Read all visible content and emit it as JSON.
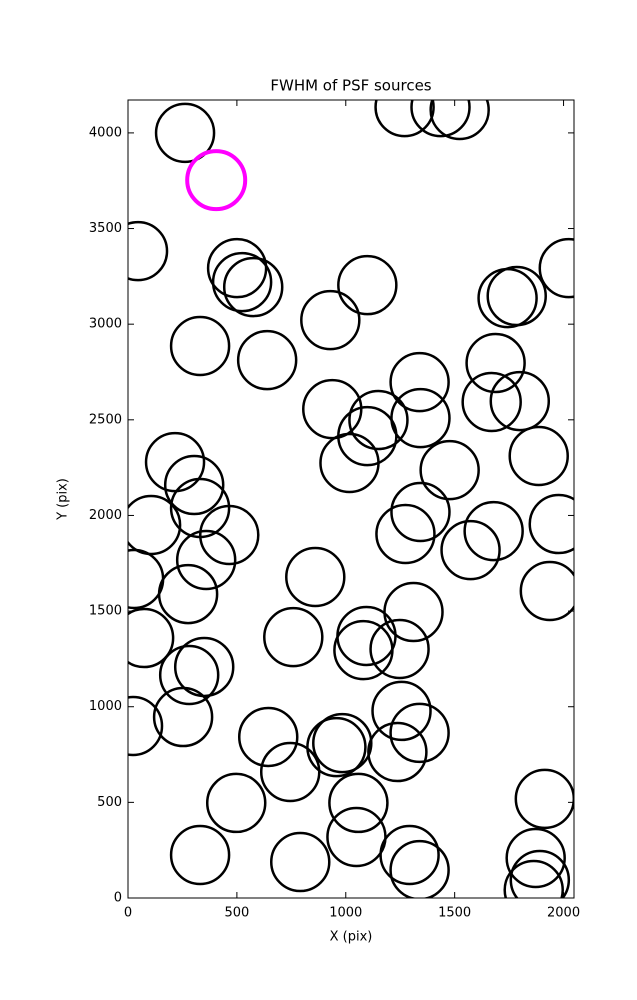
{
  "chart_data": {
    "type": "scatter",
    "title": "FWHM of PSF sources",
    "x_label": "X (pix)",
    "y_label": "Y (pix)",
    "x": [
      262,
      405,
      1270,
      1435,
      1523,
      46,
      501,
      524,
      575,
      929,
      1099,
      1785,
      1743,
      2024,
      331,
      639,
      1688,
      1339,
      1343,
      1150,
      1099,
      938,
      1670,
      1799,
      1017,
      1477,
      1886,
      216,
      304,
      331,
      106,
      465,
      359,
      1274,
      1343,
      1679,
      1573,
      1978,
      28,
      860,
      276,
      1937,
      74,
      759,
      1311,
      1095,
      1081,
      1247,
      350,
      281,
      253,
      23,
      644,
      745,
      984,
      957,
      1256,
      1339,
      1237,
      497,
      1058,
      1914,
      331,
      791,
      1049,
      1293,
      1339,
      1872,
      1891,
      1863
    ],
    "values": [
      4000,
      3753,
      4135,
      4135,
      4120,
      3382,
      3293,
      3220,
      3194,
      3021,
      3204,
      3147,
      3136,
      3293,
      2886,
      2812,
      2797,
      2697,
      2509,
      2499,
      2415,
      2556,
      2593,
      2598,
      2274,
      2237,
      2311,
      2279,
      2159,
      2039,
      1950,
      1898,
      1767,
      1903,
      2018,
      1918,
      1819,
      1955,
      1668,
      1678,
      1589,
      1605,
      1359,
      1364,
      1495,
      1370,
      1296,
      1302,
      1208,
      1166,
      946,
      899,
      842,
      659,
      810,
      789,
      978,
      863,
      763,
      497,
      497,
      518,
      225,
      188,
      319,
      225,
      146,
      209,
      94,
      42
    ],
    "color": "#000000",
    "colors": [
      "#000000",
      "#ff00ff",
      "#000000",
      "#000000",
      "#000000",
      "#000000",
      "#000000",
      "#000000",
      "#000000",
      "#000000",
      "#000000",
      "#000000",
      "#000000",
      "#000000",
      "#000000",
      "#000000",
      "#000000",
      "#000000",
      "#000000",
      "#000000",
      "#000000",
      "#000000",
      "#000000",
      "#000000",
      "#000000",
      "#000000",
      "#000000",
      "#000000",
      "#000000",
      "#000000",
      "#000000",
      "#000000",
      "#000000",
      "#000000",
      "#000000",
      "#000000",
      "#000000",
      "#000000",
      "#000000",
      "#000000",
      "#000000",
      "#000000",
      "#000000",
      "#000000",
      "#000000",
      "#000000",
      "#000000",
      "#000000",
      "#000000",
      "#000000",
      "#000000",
      "#000000",
      "#000000",
      "#000000",
      "#000000",
      "#000000",
      "#000000",
      "#000000",
      "#000000",
      "#000000",
      "#000000",
      "#000000",
      "#000000",
      "#000000",
      "#000000",
      "#000000",
      "#000000",
      "#000000",
      "#000000",
      "#000000"
    ],
    "xlim": [
      0,
      2048
    ],
    "ylim": [
      0,
      4172
    ],
    "xticks": [
      0,
      500,
      1000,
      1500,
      2000
    ],
    "yticks": [
      0,
      500,
      1000,
      1500,
      2000,
      2500,
      3000,
      3500,
      4000
    ],
    "grid": false
  }
}
